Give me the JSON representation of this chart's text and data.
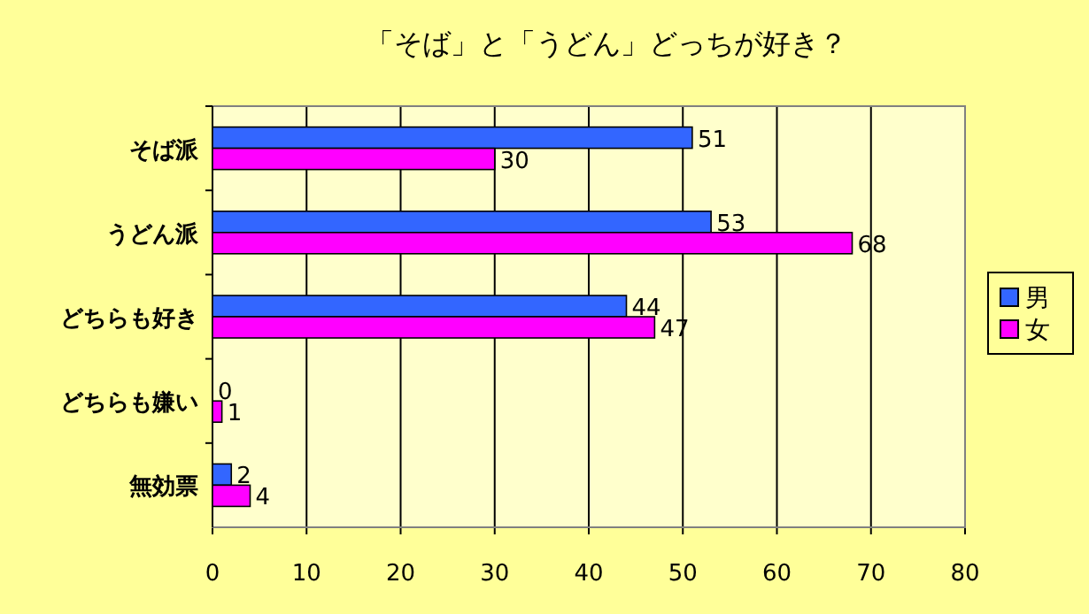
{
  "chart_data": {
    "type": "bar",
    "orientation": "horizontal",
    "title": "「そば」と「うどん」どっちが好き？",
    "categories": [
      "そば派",
      "うどん派",
      "どちらも好き",
      "どちらも嫌い",
      "無効票"
    ],
    "series": [
      {
        "name": "男",
        "color": "#3366ff",
        "values": [
          51,
          53,
          44,
          0,
          2
        ]
      },
      {
        "name": "女",
        "color": "#ff00ff",
        "values": [
          30,
          68,
          47,
          1,
          4
        ]
      }
    ],
    "xlim": [
      0,
      80
    ],
    "xticks": [
      0,
      10,
      20,
      30,
      40,
      50,
      60,
      70,
      80
    ],
    "grid": "x",
    "legend": "right",
    "data_labels": true
  }
}
